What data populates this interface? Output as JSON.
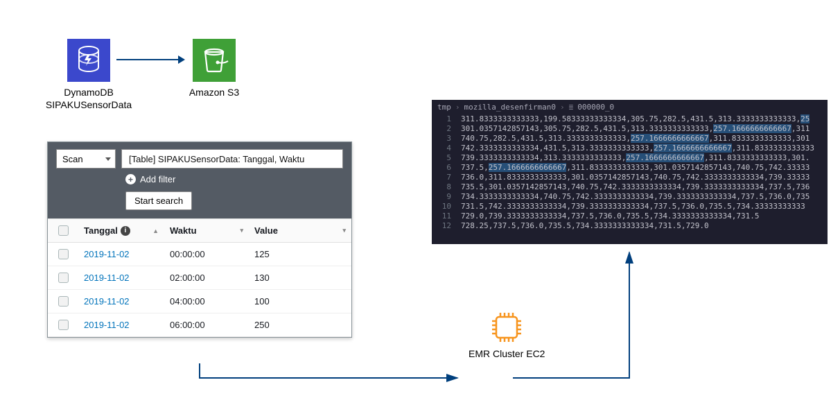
{
  "colors": {
    "dynamodb_bg": "#3b48cc",
    "s3_bg": "#3fa037",
    "arrow_color": "#003f7d",
    "emr_chip": "#f7941d",
    "terminal_bg": "#1e1e2d",
    "terminal_text": "#c3c3cc",
    "terminal_hl": "#264f78",
    "toolbar_bg": "#545b64",
    "link_color": "#0073bb"
  },
  "dynamodb": {
    "label_line1": "DynamoDB",
    "label_line2": "SIPAKUSensorData"
  },
  "s3": {
    "label": "Amazon S3"
  },
  "emr": {
    "label": "EMR Cluster EC2"
  },
  "ddb_panel": {
    "scan_label": "Scan",
    "table_desc": "[Table] SIPAKUSensorData: Tanggal, Waktu",
    "add_filter": "Add filter",
    "start_search": "Start search",
    "columns": {
      "tanggal": "Tanggal",
      "waktu": "Waktu",
      "value": "Value"
    },
    "rows": [
      {
        "tgl": "2019-11-02",
        "wkt": "00:00:00",
        "val": "125"
      },
      {
        "tgl": "2019-11-02",
        "wkt": "02:00:00",
        "val": "130"
      },
      {
        "tgl": "2019-11-02",
        "wkt": "04:00:00",
        "val": "100"
      },
      {
        "tgl": "2019-11-02",
        "wkt": "06:00:00",
        "val": "250"
      }
    ]
  },
  "terminal": {
    "crumb1": "tmp",
    "crumb2": "mozilla_desenfirman0",
    "crumb3": "000000_0",
    "lines": [
      [
        {
          "t": "311.8333333333333,199.58333333333334,305.75,282.5,431.5,313.3333333333333,"
        },
        {
          "t": "25",
          "hl": true
        }
      ],
      [
        {
          "t": "301.0357142857143,305.75,282.5,431.5,313.3333333333333,"
        },
        {
          "t": "257.1666666666667",
          "hl": true
        },
        {
          "t": ",311"
        }
      ],
      [
        {
          "t": "740.75,282.5,431.5,313.3333333333333,"
        },
        {
          "t": "257.1666666666667",
          "hl": true
        },
        {
          "t": ",311.8333333333333,301"
        }
      ],
      [
        {
          "t": "742.3333333333334,431.5,313.3333333333333,"
        },
        {
          "t": "257.1666666666667",
          "hl": true
        },
        {
          "t": ",311.8333333333333"
        }
      ],
      [
        {
          "t": "739.3333333333334,313.3333333333333,"
        },
        {
          "t": "257.1666666666667",
          "hl": true
        },
        {
          "t": ",311.8333333333333,301."
        }
      ],
      [
        {
          "t": "737.5,"
        },
        {
          "t": "257.1666666666667",
          "hl": true
        },
        {
          "t": ",311.8333333333333,301.0357142857143,740.75,742.33333"
        }
      ],
      [
        {
          "t": "736.0,311.8333333333333,301.0357142857143,740.75,742.3333333333334,739.33333"
        }
      ],
      [
        {
          "t": "735.5,301.0357142857143,740.75,742.3333333333334,739.3333333333334,737.5,736"
        }
      ],
      [
        {
          "t": "734.3333333333334,740.75,742.3333333333334,739.3333333333334,737.5,736.0,735"
        }
      ],
      [
        {
          "t": "731.5,742.3333333333334,739.3333333333334,737.5,736.0,735.5,734.33333333333"
        }
      ],
      [
        {
          "t": "729.0,739.3333333333334,737.5,736.0,735.5,734.3333333333334,731.5"
        }
      ],
      [
        {
          "t": "728.25,737.5,736.0,735.5,734.3333333333334,731.5,729.0"
        }
      ]
    ]
  }
}
